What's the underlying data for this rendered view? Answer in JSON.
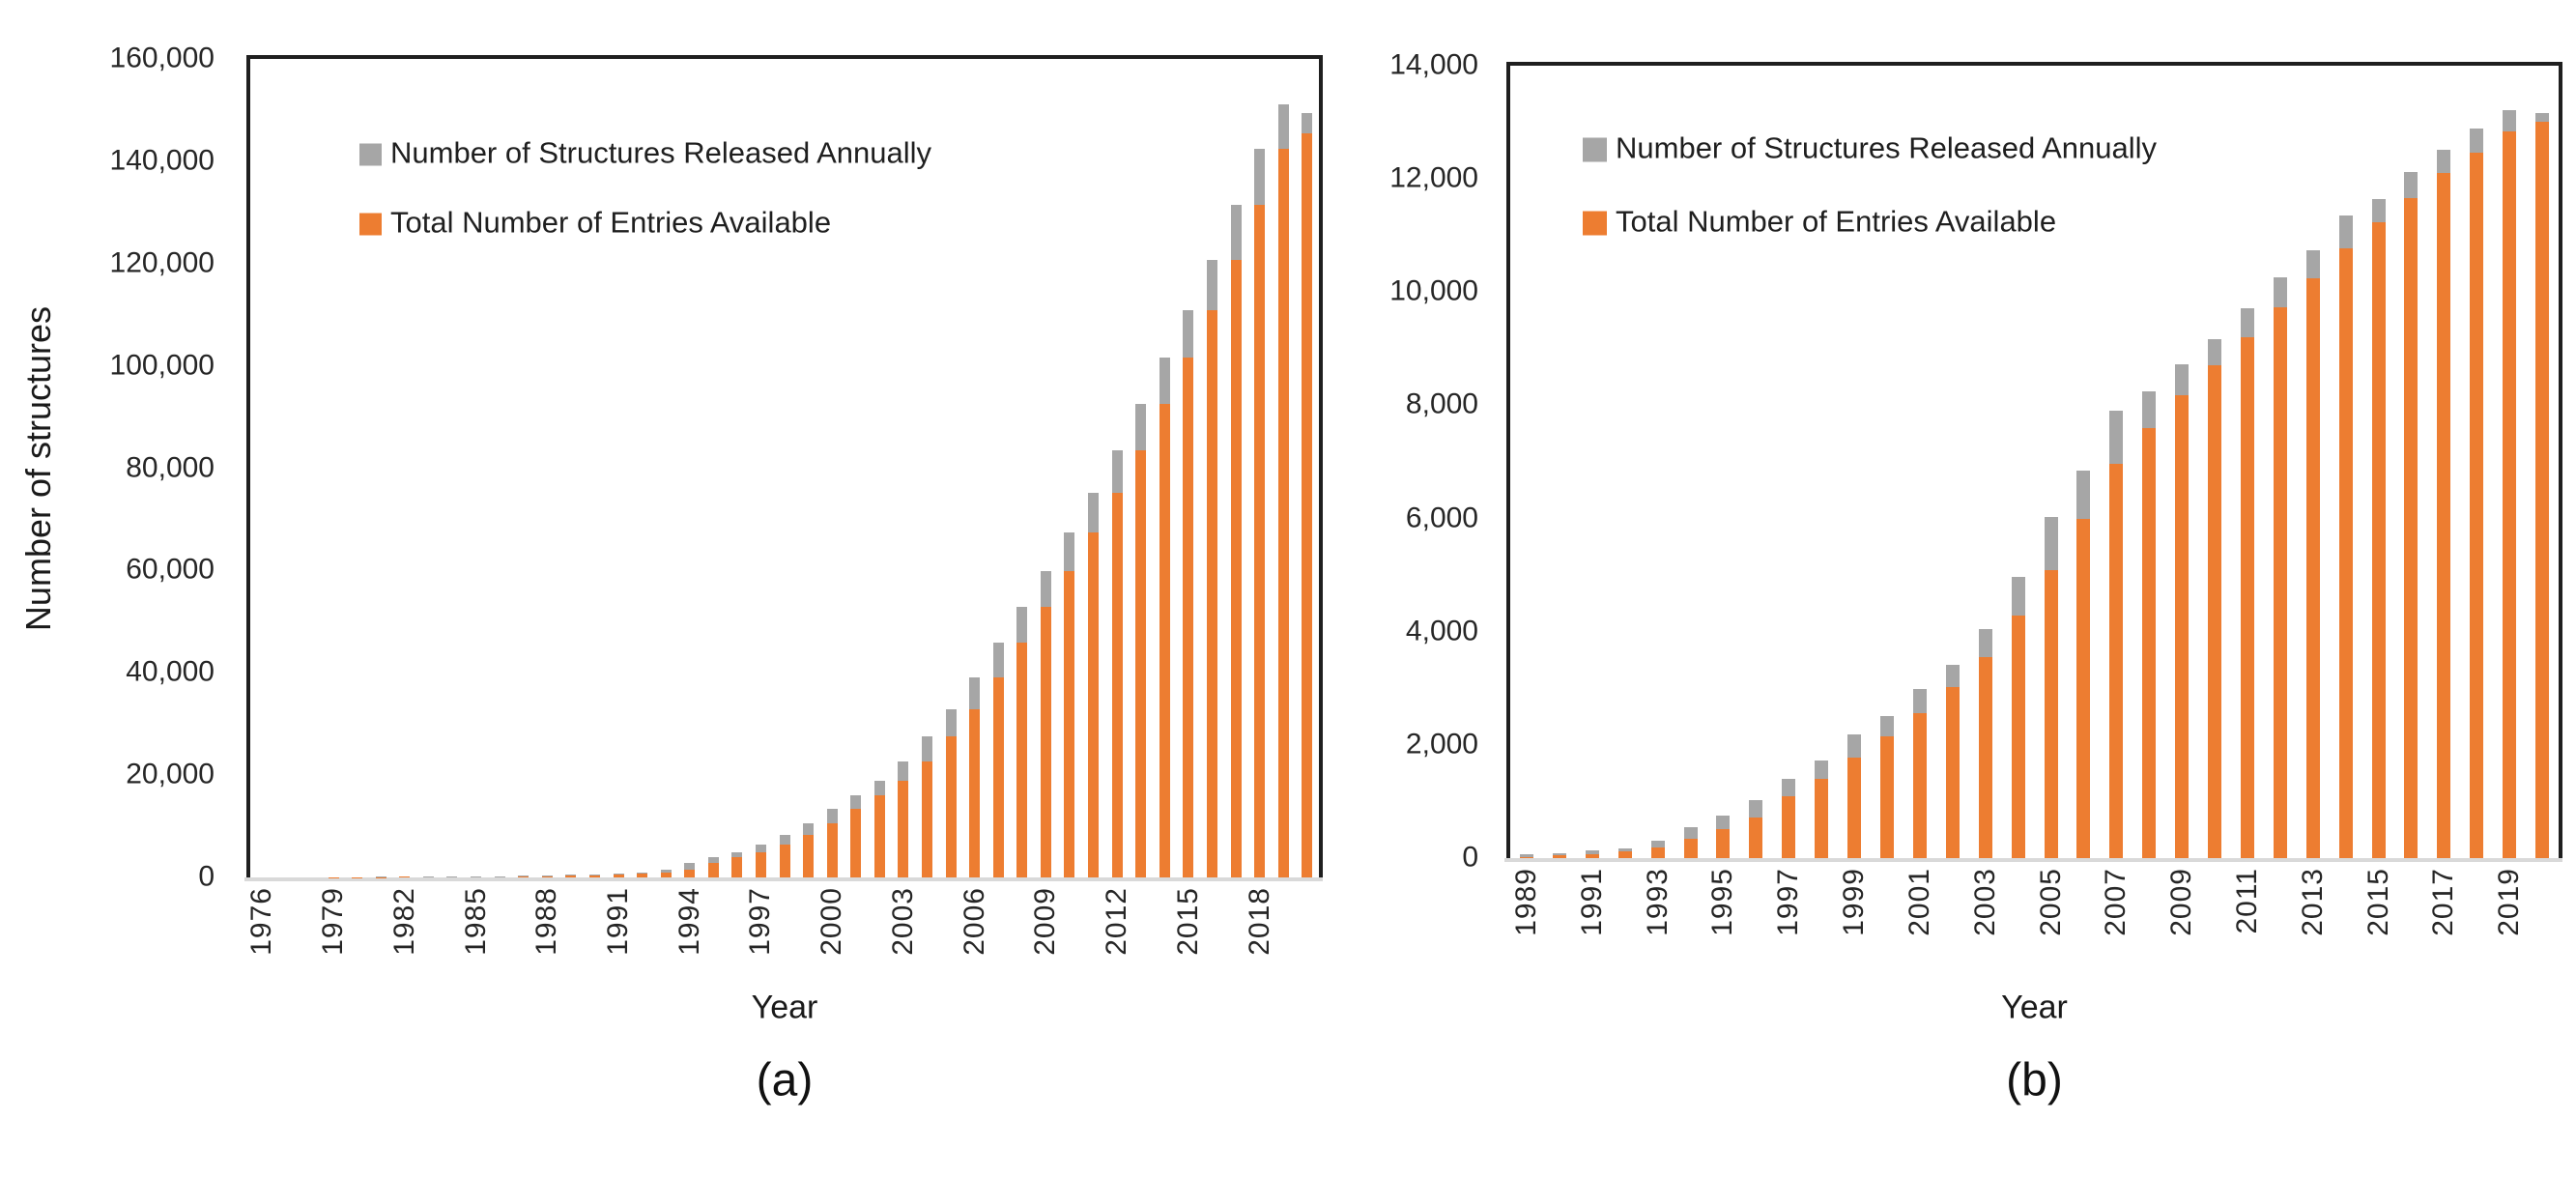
{
  "figure": {
    "background": "#FFFFFF"
  },
  "colors": {
    "annual_gray": "#A6A6A6",
    "total_orange": "#ED7D31",
    "axis_frame": "#1F1F1F",
    "zero_baseline": "#D9D9D9",
    "text": "#262626"
  },
  "legend": {
    "annual_label": "Number of Structures Released Annually",
    "total_label": "Total Number of Entries Available"
  },
  "chart_data": [
    {
      "id": "a",
      "type": "bar",
      "stacked": true,
      "caption": "(a)",
      "xlabel": "Year",
      "ylabel": "Number of structures",
      "ylim": [
        0,
        160000
      ],
      "ytick_step": 20000,
      "x_label_every": 3,
      "legend_position": "top-left-inside",
      "grid": false,
      "years": [
        1976,
        1977,
        1978,
        1979,
        1980,
        1981,
        1982,
        1983,
        1984,
        1985,
        1986,
        1987,
        1988,
        1989,
        1990,
        1991,
        1992,
        1993,
        1994,
        1995,
        1996,
        1997,
        1998,
        1999,
        2000,
        2001,
        2002,
        2003,
        2004,
        2005,
        2006,
        2007,
        2008,
        2009,
        2010,
        2011,
        2012,
        2013,
        2014,
        2015,
        2016,
        2017,
        2018,
        2019,
        2020
      ],
      "series": [
        {
          "name": "Total Number of Entries Available",
          "color": "#ED7D31",
          "role": "total",
          "values": [
            0,
            13,
            23,
            37,
            53,
            66,
            100,
            127,
            158,
            193,
            230,
            268,
            317,
            386,
            477,
            591,
            774,
            974,
            1531,
            2779,
            3874,
            4955,
            6346,
            8221,
            10571,
            13348,
            16068,
            18897,
            22697,
            27672,
            32954,
            39190,
            45951,
            52821,
            59925,
            67398,
            75127,
            83582,
            92512,
            101695,
            110833,
            120778,
            131485,
            142367,
            145500
          ]
        },
        {
          "name": "Number of Structures Released Annually",
          "color": "#A6A6A6",
          "role": "annual",
          "values": [
            13,
            10,
            14,
            16,
            13,
            34,
            27,
            31,
            35,
            37,
            38,
            49,
            69,
            91,
            114,
            183,
            200,
            557,
            1248,
            1095,
            1081,
            1391,
            1875,
            2350,
            2777,
            2720,
            2829,
            3800,
            4975,
            5282,
            6236,
            6761,
            6870,
            7104,
            7473,
            7729,
            8455,
            8930,
            9183,
            9138,
            9945,
            10707,
            10882,
            8800,
            4000
          ]
        }
      ]
    },
    {
      "id": "b",
      "type": "bar",
      "stacked": true,
      "caption": "(b)",
      "xlabel": "Year",
      "ylabel": "",
      "ylim": [
        0,
        14000
      ],
      "ytick_step": 2000,
      "x_label_every": 2,
      "legend_position": "top-left-inside",
      "grid": false,
      "years": [
        1989,
        1990,
        1991,
        1992,
        1993,
        1994,
        1995,
        1996,
        1997,
        1998,
        1999,
        2000,
        2001,
        2002,
        2003,
        2004,
        2005,
        2006,
        2007,
        2008,
        2009,
        2010,
        2011,
        2012,
        2013,
        2014,
        2015,
        2016,
        2017,
        2018,
        2019,
        2020
      ],
      "series": [
        {
          "name": "Total Number of Entries Available",
          "color": "#ED7D31",
          "role": "total",
          "values": [
            20,
            45,
            70,
            120,
            190,
            340,
            510,
            720,
            1090,
            1400,
            1775,
            2150,
            2560,
            3020,
            3550,
            4285,
            5090,
            5990,
            6960,
            7600,
            8180,
            8710,
            9200,
            9730,
            10240,
            10770,
            11230,
            11660,
            12100,
            12460,
            12840,
            13010
          ]
        },
        {
          "name": "Number of Structures Released Annually",
          "color": "#A6A6A6",
          "role": "annual",
          "values": [
            50,
            45,
            60,
            55,
            110,
            205,
            240,
            300,
            310,
            320,
            410,
            360,
            430,
            395,
            495,
            690,
            935,
            860,
            940,
            640,
            540,
            460,
            510,
            530,
            500,
            580,
            410,
            460,
            410,
            430,
            370,
            150
          ]
        }
      ]
    }
  ]
}
